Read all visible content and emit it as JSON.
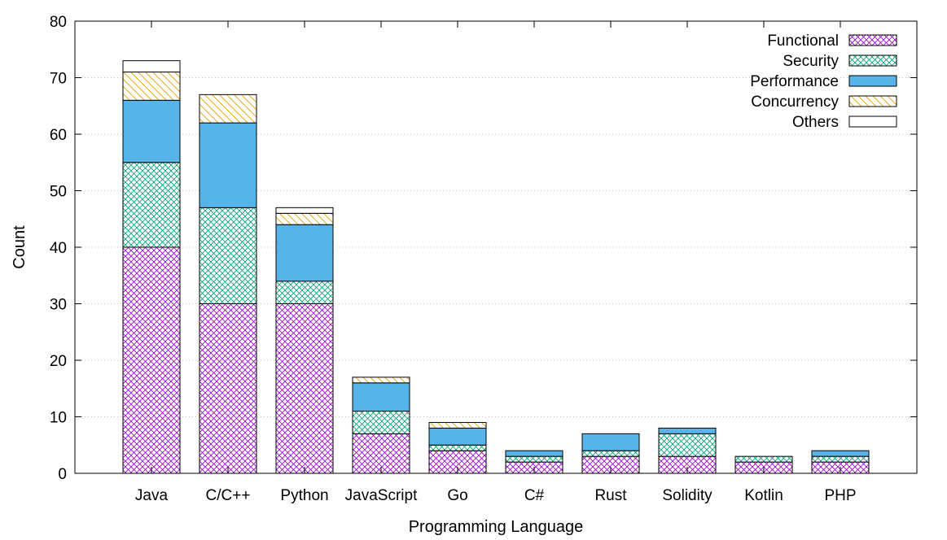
{
  "chart_data": {
    "type": "bar",
    "stacked": true,
    "title": "",
    "xlabel": "Programming Language",
    "ylabel": "Count",
    "ylim": [
      0,
      80
    ],
    "yticks": [
      0,
      10,
      20,
      30,
      40,
      50,
      60,
      70,
      80
    ],
    "grid": "horizontal dotted",
    "legend_position": "top-right",
    "categories": [
      "Java",
      "C/C++",
      "Python",
      "JavaScript",
      "Go",
      "C#",
      "Rust",
      "Solidity",
      "Kotlin",
      "PHP"
    ],
    "series": [
      {
        "name": "Functional",
        "color": "#9400d3",
        "pattern": "crosshatch",
        "values": [
          40,
          30,
          30,
          7,
          4,
          2,
          3,
          3,
          2,
          2
        ]
      },
      {
        "name": "Security",
        "color": "#009e73",
        "pattern": "crosshatch",
        "values": [
          15,
          17,
          4,
          4,
          1,
          1,
          1,
          4,
          1,
          1
        ]
      },
      {
        "name": "Performance",
        "color": "#56b4e9",
        "pattern": "solid",
        "values": [
          11,
          15,
          10,
          5,
          3,
          1,
          3,
          1,
          0,
          1
        ]
      },
      {
        "name": "Concurrency",
        "color": "#e69f00",
        "pattern": "diagonal",
        "values": [
          5,
          5,
          2,
          1,
          1,
          0,
          0,
          0,
          0,
          0
        ]
      },
      {
        "name": "Others",
        "color": "#ffffff",
        "pattern": "empty",
        "values": [
          2,
          0,
          1,
          0,
          0,
          0,
          0,
          0,
          0,
          0
        ]
      }
    ]
  }
}
